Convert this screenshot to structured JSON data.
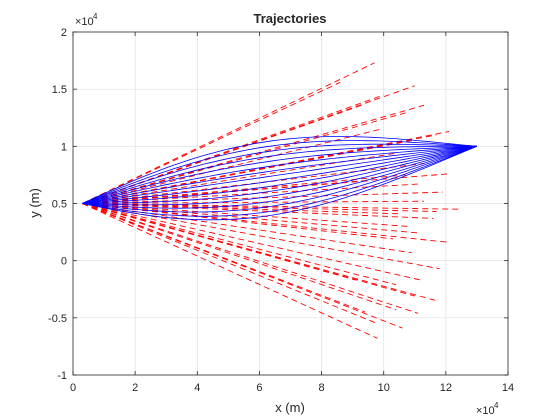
{
  "chart_data": {
    "type": "line",
    "title": "Trajectories",
    "xlabel": "x (m)",
    "ylabel": "y (m)",
    "xlim": [
      0,
      140000
    ],
    "ylim": [
      -10000,
      20000
    ],
    "xticks": [
      0,
      20000,
      40000,
      60000,
      80000,
      100000,
      120000,
      140000
    ],
    "xtick_labels": [
      "0",
      "2",
      "4",
      "6",
      "8",
      "10",
      "12",
      "14"
    ],
    "yticks": [
      -10000,
      -5000,
      0,
      5000,
      10000,
      15000,
      20000
    ],
    "ytick_labels": [
      "-1",
      "-0.5",
      "0",
      "0.5",
      "1",
      "1.5",
      "2"
    ],
    "x_exponent_label": "×10",
    "x_exponent_power": "4",
    "y_exponent_label": "×10",
    "y_exponent_power": "4",
    "grid": true,
    "colors": {
      "solid": "#0000ff",
      "dashed": "#ff0000",
      "axis": "#262626",
      "grid": "#dfdfdf"
    },
    "series": [
      {
        "style": "solid",
        "color": "#0000ff",
        "start": [
          3000,
          5000
        ],
        "end": [
          130000,
          10000
        ],
        "bulge_values": [
          3500,
          3000,
          2500,
          2000,
          1500,
          1000,
          500,
          0,
          -500,
          -1000,
          -1500,
          -2000,
          -2500,
          -3000,
          -3500,
          -3900
        ]
      },
      {
        "style": "dashed",
        "color": "#ff0000",
        "start": [
          3000,
          5000
        ],
        "endpoints": [
          [
            97000,
            17300
          ],
          [
            86000,
            15600
          ],
          [
            110000,
            15300
          ],
          [
            100000,
            14500
          ],
          [
            113000,
            13600
          ],
          [
            108000,
            13000
          ],
          [
            121000,
            11300
          ],
          [
            117000,
            11000
          ],
          [
            109000,
            10500
          ],
          [
            104000,
            9400
          ],
          [
            113000,
            8500
          ],
          [
            121000,
            7600
          ],
          [
            107000,
            7500
          ],
          [
            111000,
            6700
          ],
          [
            119000,
            6000
          ],
          [
            113000,
            5200
          ],
          [
            124000,
            4500
          ],
          [
            117000,
            4300
          ],
          [
            105000,
            4100
          ],
          [
            116000,
            3700
          ],
          [
            108000,
            3000
          ],
          [
            112000,
            2400
          ],
          [
            103000,
            1900
          ],
          [
            121000,
            1600
          ],
          [
            109000,
            700
          ],
          [
            118000,
            -700
          ],
          [
            112000,
            -1700
          ],
          [
            104000,
            -2100
          ],
          [
            110000,
            -3100
          ],
          [
            117000,
            -3500
          ],
          [
            104000,
            -4300
          ],
          [
            111000,
            -4600
          ],
          [
            98000,
            -5500
          ],
          [
            106000,
            -5900
          ],
          [
            98000,
            -6800
          ],
          [
            94000,
            -4500
          ],
          [
            91000,
            -1700
          ],
          [
            96000,
            7000
          ],
          [
            99000,
            11500
          ],
          [
            94000,
            13700
          ]
        ]
      }
    ]
  }
}
